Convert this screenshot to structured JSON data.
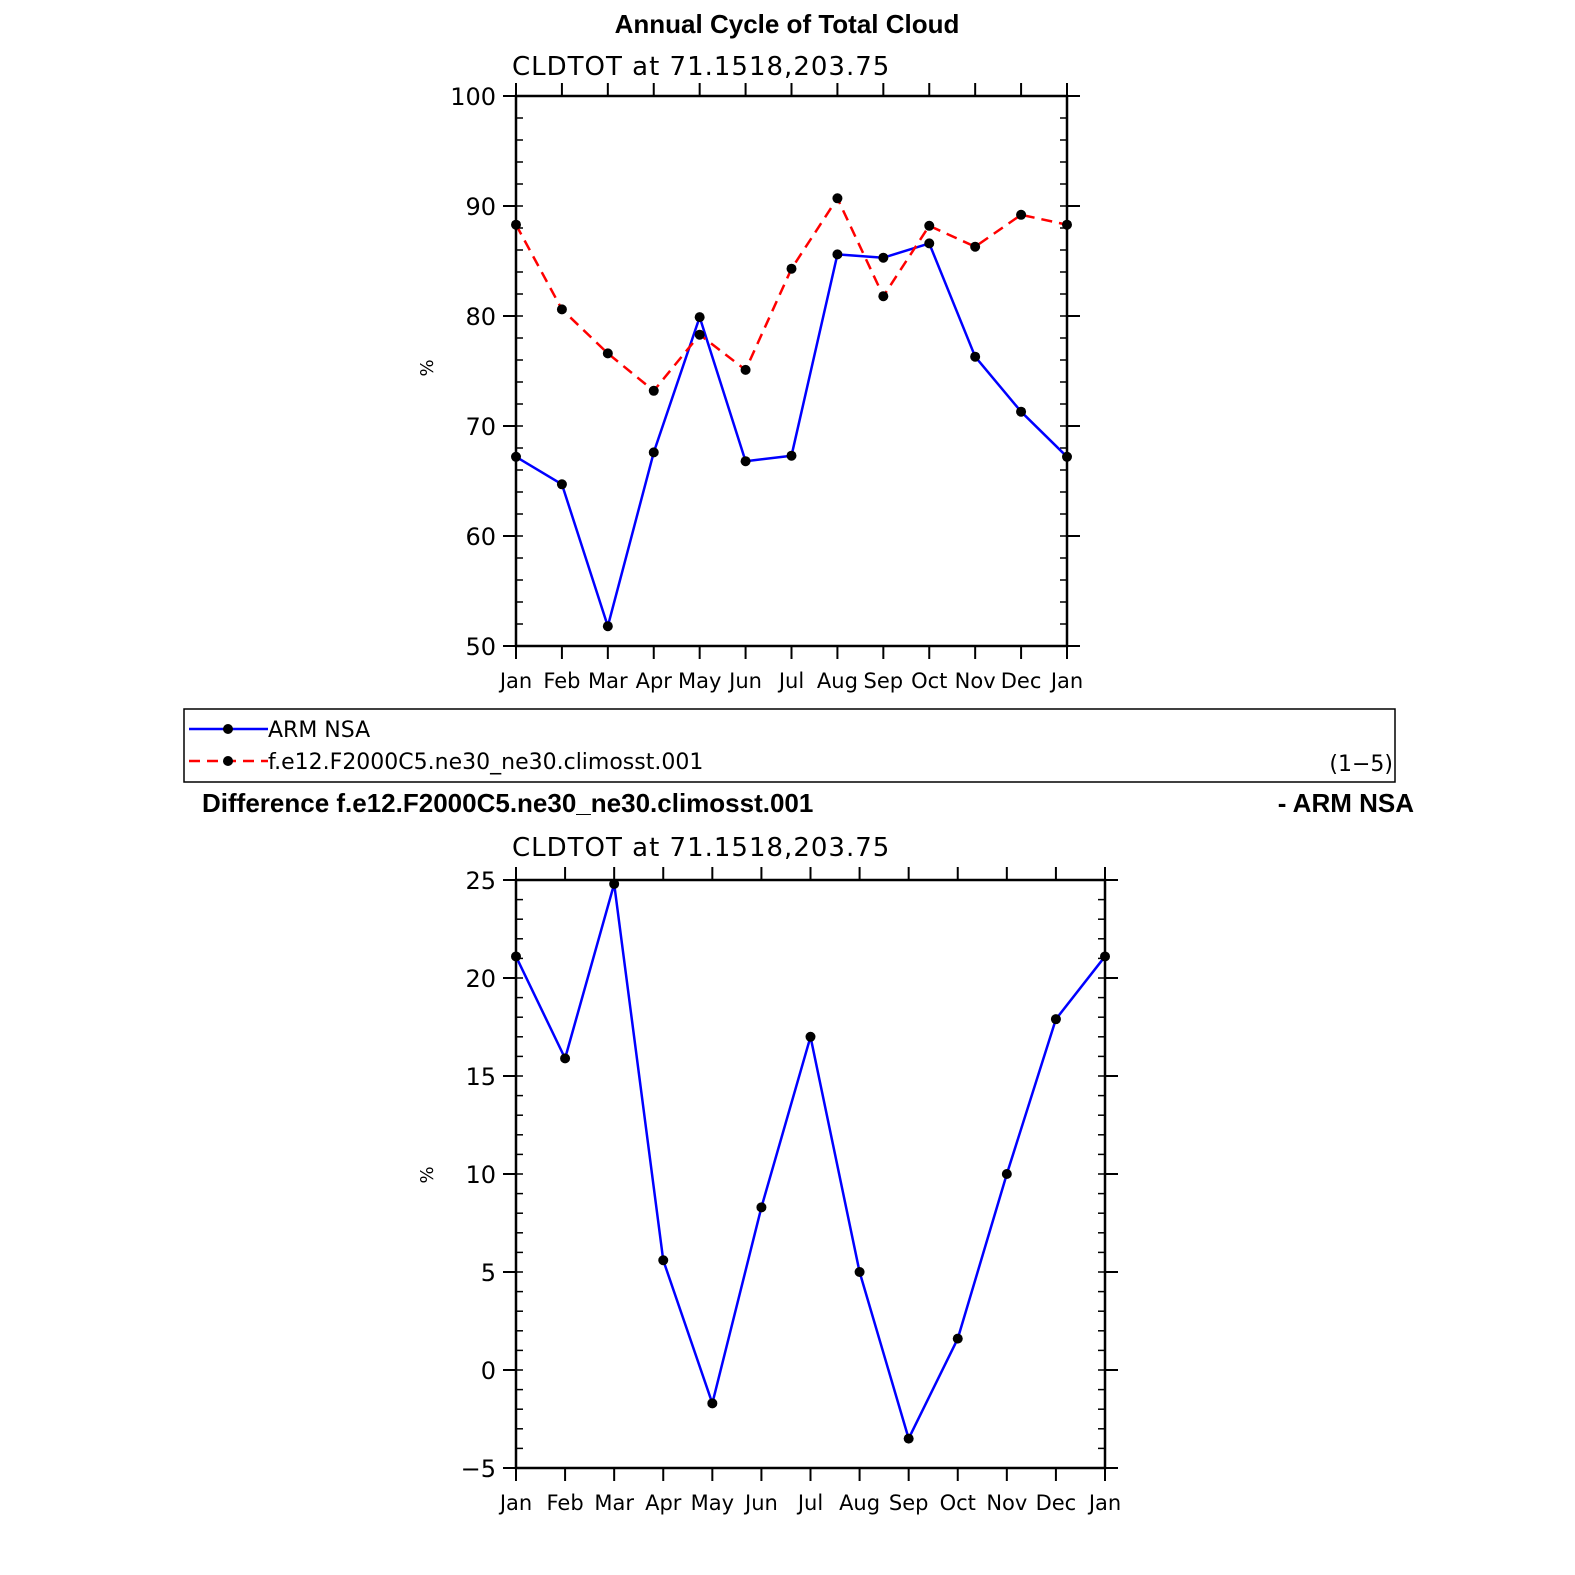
{
  "chart_data": [
    {
      "type": "line",
      "title": "Annual Cycle of Total Cloud",
      "subtitle": "CLDTOT at 71.1518,203.75",
      "ylabel": "%",
      "xlabel": "",
      "categories": [
        "Jan",
        "Feb",
        "Mar",
        "Apr",
        "May",
        "Jun",
        "Jul",
        "Aug",
        "Sep",
        "Oct",
        "Nov",
        "Dec",
        "Jan"
      ],
      "ylim": [
        50,
        100
      ],
      "yticks": [
        50,
        60,
        70,
        80,
        90,
        100
      ],
      "grid": false,
      "series": [
        {
          "name": "ARM NSA",
          "color": "#0000ff",
          "dash": "solid",
          "values": [
            67.2,
            64.7,
            51.8,
            67.6,
            79.9,
            66.8,
            67.3,
            85.6,
            85.3,
            86.6,
            76.3,
            71.3,
            67.2
          ]
        },
        {
          "name": "f.e12.F2000C5.ne30_ne30.climosst.001",
          "color": "#ff0000",
          "dash": "dashed",
          "values": [
            88.3,
            80.6,
            76.6,
            73.2,
            78.3,
            75.1,
            84.3,
            90.7,
            81.8,
            88.2,
            86.3,
            89.2,
            88.3
          ]
        }
      ]
    },
    {
      "type": "line",
      "title": "Difference f.e12.F2000C5.ne30_ne30.climosst.001",
      "title_right": "- ARM NSA",
      "subtitle": "CLDTOT at 71.1518,203.75",
      "ylabel": "%",
      "xlabel": "",
      "categories": [
        "Jan",
        "Feb",
        "Mar",
        "Apr",
        "May",
        "Jun",
        "Jul",
        "Aug",
        "Sep",
        "Oct",
        "Nov",
        "Dec",
        "Jan"
      ],
      "ylim": [
        -5,
        25
      ],
      "yticks": [
        -5,
        0,
        5,
        10,
        15,
        20,
        25
      ],
      "ytick_labels": [
        "−5",
        "0",
        "5",
        "10",
        "15",
        "20",
        "25"
      ],
      "grid": false,
      "series": [
        {
          "color": "#0000ff",
          "dash": "solid",
          "values": [
            21.1,
            15.9,
            24.8,
            5.6,
            -1.7,
            8.3,
            17.0,
            5.0,
            -3.5,
            1.6,
            10.0,
            17.9,
            21.1
          ]
        }
      ]
    }
  ],
  "legend": {
    "items": [
      "ARM NSA",
      "f.e12.F2000C5.ne30_ne30.climosst.001"
    ],
    "note": "(1−5)"
  }
}
